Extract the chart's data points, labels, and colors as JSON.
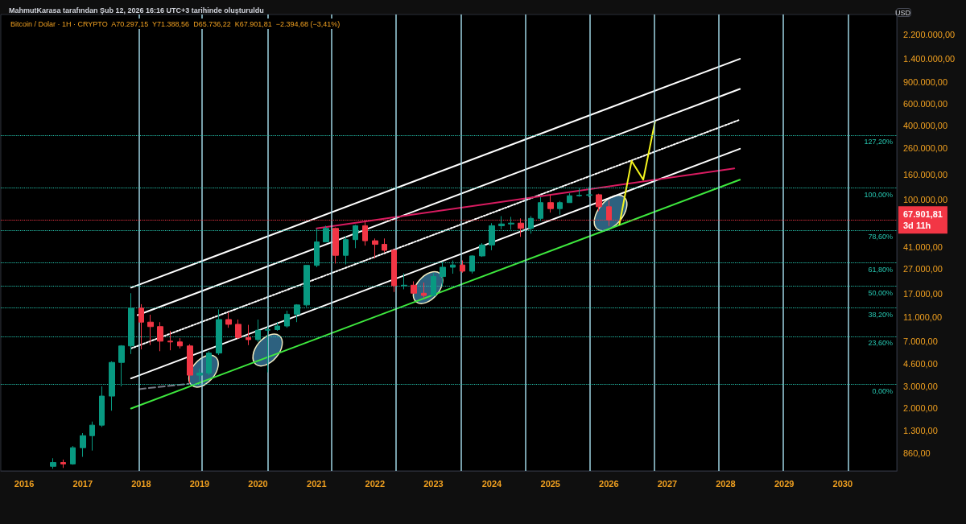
{
  "chart_data": {
    "type": "candlestick",
    "title": "MahmutKarasa tarafından Şub 12, 2026 16:16 UTC+3 tarihinde oluşturuldu",
    "subtitle": "Bitcoin / Dolar · 1H · CRYPTO  A70.297,15  Y71.388,56  D65.736,22  K67.901,81  −2.394,68 (−3,41%)",
    "ylabel": "USD",
    "x": [
      "2016-07-01",
      "2016-09-01",
      "2016-11-01",
      "2017-01-01",
      "2017-03-01",
      "2017-05-01",
      "2017-07-01",
      "2017-09-01",
      "2017-11-01",
      "2018-01-01",
      "2018-03-01",
      "2018-05-01",
      "2018-07-01",
      "2018-09-01",
      "2018-11-01",
      "2019-01-01",
      "2019-03-01",
      "2019-05-01",
      "2019-07-01",
      "2019-09-01",
      "2019-11-01",
      "2020-01-01",
      "2020-03-01",
      "2020-05-01",
      "2020-07-01",
      "2020-09-01",
      "2020-11-01",
      "2021-01-01",
      "2021-03-01",
      "2021-05-01",
      "2021-07-01",
      "2021-09-01",
      "2021-11-01",
      "2022-01-01",
      "2022-03-01",
      "2022-05-01",
      "2022-07-01",
      "2022-09-01",
      "2022-11-01",
      "2023-01-01",
      "2023-03-01",
      "2023-05-01",
      "2023-07-01",
      "2023-09-01",
      "2023-11-01",
      "2024-01-01",
      "2024-03-01",
      "2024-05-01",
      "2024-07-01",
      "2024-09-01",
      "2024-11-01",
      "2025-01-01",
      "2025-03-01",
      "2025-05-01",
      "2025-07-01",
      "2025-09-01",
      "2025-11-01",
      "2026-01-01"
    ],
    "ohlc": [
      [
        670,
        780,
        640,
        720
      ],
      [
        720,
        760,
        650,
        700
      ],
      [
        700,
        980,
        690,
        950
      ],
      [
        950,
        1250,
        800,
        1190
      ],
      [
        1190,
        1550,
        900,
        1450
      ],
      [
        1450,
        3000,
        1400,
        2500
      ],
      [
        2500,
        4800,
        1900,
        4700
      ],
      [
        4700,
        6500,
        3000,
        6400
      ],
      [
        6400,
        17200,
        5500,
        13000
      ],
      [
        13000,
        14000,
        6000,
        10000
      ],
      [
        10000,
        11500,
        6500,
        9200
      ],
      [
        9200,
        10000,
        5800,
        7000
      ],
      [
        7000,
        8500,
        5900,
        6900
      ],
      [
        6900,
        7400,
        6100,
        6400
      ],
      [
        6400,
        6600,
        3200,
        3700
      ],
      [
        3700,
        4200,
        3300,
        3850
      ],
      [
        3850,
        5800,
        3700,
        5600
      ],
      [
        5600,
        12700,
        5400,
        10500
      ],
      [
        10500,
        12000,
        9000,
        9600
      ],
      [
        9600,
        10500,
        7300,
        7500
      ],
      [
        7500,
        9500,
        6500,
        7200
      ],
      [
        7200,
        10500,
        6900,
        8600
      ],
      [
        8600,
        9200,
        3900,
        8700
      ],
      [
        8700,
        10000,
        8500,
        9300
      ],
      [
        9300,
        12400,
        9000,
        11600
      ],
      [
        11600,
        14000,
        10000,
        13800
      ],
      [
        13800,
        29000,
        13300,
        29000
      ],
      [
        29000,
        58000,
        28000,
        45000
      ],
      [
        45000,
        61000,
        45000,
        58000
      ],
      [
        58000,
        59000,
        30000,
        35000
      ],
      [
        35000,
        50000,
        29500,
        47000
      ],
      [
        47000,
        62000,
        40000,
        61000
      ],
      [
        61000,
        66500,
        42000,
        46000
      ],
      [
        46000,
        48000,
        33000,
        43000
      ],
      [
        43000,
        48000,
        37000,
        38500
      ],
      [
        38500,
        39500,
        17600,
        19800
      ],
      [
        19800,
        25000,
        18500,
        20000
      ],
      [
        20000,
        21500,
        17000,
        17200
      ],
      [
        17200,
        21000,
        15700,
        16500
      ],
      [
        16500,
        25000,
        16300,
        23500
      ],
      [
        23500,
        31000,
        19600,
        28000
      ],
      [
        28000,
        31800,
        24800,
        29200
      ],
      [
        29200,
        31800,
        25300,
        26000
      ],
      [
        26000,
        35000,
        24900,
        34600
      ],
      [
        34600,
        44000,
        34000,
        42500
      ],
      [
        42500,
        64000,
        38500,
        61000
      ],
      [
        61000,
        73000,
        57000,
        63000
      ],
      [
        63000,
        72000,
        56500,
        64000
      ],
      [
        64000,
        70000,
        49500,
        58000
      ],
      [
        58000,
        73000,
        52500,
        70000
      ],
      [
        70000,
        104000,
        67000,
        94000
      ],
      [
        94000,
        109000,
        78000,
        84000
      ],
      [
        84000,
        97000,
        75000,
        94000
      ],
      [
        94000,
        112000,
        94000,
        107000
      ],
      [
        107000,
        123000,
        105000,
        108000
      ],
      [
        108000,
        126000,
        104000,
        109000
      ],
      [
        109000,
        111000,
        80000,
        87000
      ],
      [
        87000,
        98000,
        60700,
        67901.81
      ]
    ],
    "colors": [
      "#089981",
      "#f23645",
      "#089981",
      "#089981",
      "#089981",
      "#089981",
      "#089981",
      "#089981",
      "#089981",
      "#f23645",
      "#f23645",
      "#f23645",
      "#f23645",
      "#f23645",
      "#f23645",
      "#089981",
      "#089981",
      "#089981",
      "#f23645",
      "#f23645",
      "#f23645",
      "#089981",
      "#089981",
      "#089981",
      "#089981",
      "#089981",
      "#089981",
      "#089981",
      "#089981",
      "#f23645",
      "#089981",
      "#089981",
      "#f23645",
      "#f23645",
      "#f23645",
      "#f23645",
      "#089981",
      "#f23645",
      "#f23645",
      "#089981",
      "#089981",
      "#089981",
      "#f23645",
      "#089981",
      "#089981",
      "#089981",
      "#089981",
      "#089981",
      "#f23645",
      "#089981",
      "#089981",
      "#f23645",
      "#089981",
      "#089981",
      "#089981",
      "#089981",
      "#f23645",
      "#f23645"
    ],
    "series": [
      {
        "type": "line",
        "x": [
          "2017-10-30",
          "2028-03-30"
        ],
        "values": [
          19100,
          1393000
        ],
        "color": "#ffffff"
      },
      {
        "type": "line",
        "x": [
          "2017-12-10",
          "2028-03-30"
        ],
        "values": [
          11400,
          792000
        ],
        "color": "#ffffff"
      },
      {
        "type": "line",
        "x": [
          "2017-10-30",
          "2028-03-30"
        ],
        "values": [
          6110,
          445000
        ],
        "color": "#ffffff",
        "line_style": "dotted"
      },
      {
        "type": "line",
        "x": [
          "2017-10-30",
          "2028-03-30"
        ],
        "values": [
          3480,
          258000
        ],
        "color": "#ffffff"
      },
      {
        "type": "line",
        "x": [
          "2017-10-30",
          "2028-03-30"
        ],
        "values": [
          1980,
          144500
        ],
        "color": "#3ee83e"
      },
      {
        "type": "line",
        "x": [
          "2021-01-01",
          "2028-02-24"
        ],
        "values": [
          57900,
          178600
        ],
        "color": "#d81b60"
      },
      {
        "type": "line",
        "x": [
          "2026-03-08",
          "2026-05-23",
          "2026-08-04",
          "2026-10-16"
        ],
        "values": [
          62500,
          205000,
          144500,
          425000
        ],
        "color": "#f5f51e"
      },
      {
        "type": "line",
        "x": [
          "2017-12-20",
          "2018-10-26"
        ],
        "values": [
          2850,
          3150
        ],
        "color": "#787b86",
        "line_style": "dashed"
      }
    ],
    "marker": "none",
    "xlim": [
      "2015-08-08",
      "2030-12-05"
    ],
    "xticks": [
      "2016",
      "2017",
      "2018",
      "2019",
      "2020",
      "2021",
      "2022",
      "2023",
      "2024",
      "2025",
      "2026",
      "2027",
      "2028",
      "2029",
      "2030"
    ],
    "ylim": [
      615,
      3200000
    ],
    "yticks": [
      {
        "value": 2200000,
        "label": "2.200.000,00"
      },
      {
        "value": 1400000,
        "label": "1.400.000,00"
      },
      {
        "value": 900000,
        "label": "900.000,00"
      },
      {
        "value": 600000,
        "label": "600.000,00"
      },
      {
        "value": 400000,
        "label": "400.000,00"
      },
      {
        "value": 260000,
        "label": "260.000,00"
      },
      {
        "value": 160000,
        "label": "160.000,00"
      },
      {
        "value": 100000,
        "label": "100.000,00"
      },
      {
        "value": 41000,
        "label": "41.000,00"
      },
      {
        "value": 27000,
        "label": "27.000,00"
      },
      {
        "value": 17000,
        "label": "17.000,00"
      },
      {
        "value": 11000,
        "label": "11.000,00"
      },
      {
        "value": 7000,
        "label": "7.000,00"
      },
      {
        "value": 4600,
        "label": "4.600,00"
      },
      {
        "value": 3000,
        "label": "3.000,00"
      },
      {
        "value": 2000,
        "label": "2.000,00"
      },
      {
        "value": 1300,
        "label": "1.300,00"
      },
      {
        "value": 860,
        "label": "860,00"
      }
    ],
    "annotations": [
      {
        "text": "127,20%",
        "x": "2030-12-05",
        "y": 333000
      },
      {
        "text": "100,00%",
        "x": "2030-12-05",
        "y": 124000
      },
      {
        "text": "78,60%",
        "x": "2030-12-05",
        "y": 56200
      },
      {
        "text": "61,80%",
        "x": "2030-12-05",
        "y": 30600
      },
      {
        "text": "50,00%",
        "x": "2030-12-05",
        "y": 19700
      },
      {
        "text": "38,20%",
        "x": "2030-12-05",
        "y": 13100
      },
      {
        "text": "23,60%",
        "x": "2030-12-05",
        "y": 7670
      },
      {
        "text": "0,00%",
        "x": "2030-12-05",
        "y": 3130
      }
    ],
    "log": true,
    "grid": false,
    "ref_lines": [
      {
        "axis": "x",
        "value": "2017-12-17",
        "label": null,
        "color": "#9fd4e3"
      },
      {
        "axis": "x",
        "value": "2019-01-15",
        "label": null,
        "color": "#9fd4e3"
      },
      {
        "axis": "x",
        "value": "2020-03-01",
        "label": null,
        "color": "#9fd4e3"
      },
      {
        "axis": "x",
        "value": "2021-04-05",
        "label": null,
        "color": "#9fd4e3"
      },
      {
        "axis": "x",
        "value": "2022-05-11",
        "label": null,
        "color": "#9fd4e3"
      },
      {
        "axis": "x",
        "value": "2023-06-24",
        "label": null,
        "color": "#9fd4e3"
      },
      {
        "axis": "x",
        "value": "2024-07-30",
        "label": null,
        "color": "#9fd4e3"
      },
      {
        "axis": "x",
        "value": "2025-09-06",
        "label": null,
        "color": "#9fd4e3"
      },
      {
        "axis": "x",
        "value": "2026-10-12",
        "label": null,
        "color": "#9fd4e3"
      },
      {
        "axis": "x",
        "value": "2027-11-20",
        "label": null,
        "color": "#9fd4e3"
      },
      {
        "axis": "x",
        "value": "2028-12-27",
        "label": null,
        "color": "#9fd4e3"
      },
      {
        "axis": "x",
        "value": "2030-02-05",
        "label": null,
        "color": "#9fd4e3"
      },
      {
        "axis": "y",
        "value": 333000,
        "label": null,
        "color": "#26c6b0",
        "line_style": "dotted"
      },
      {
        "axis": "y",
        "value": 124000,
        "label": null,
        "color": "#26c6b0",
        "line_style": "dotted"
      },
      {
        "axis": "y",
        "value": 56200,
        "label": null,
        "color": "#26c6b0",
        "line_style": "dotted"
      },
      {
        "axis": "y",
        "value": 30600,
        "label": null,
        "color": "#26c6b0",
        "line_style": "dotted"
      },
      {
        "axis": "y",
        "value": 19700,
        "label": null,
        "color": "#26c6b0",
        "line_style": "dotted"
      },
      {
        "axis": "y",
        "value": 13100,
        "label": null,
        "color": "#26c6b0",
        "line_style": "dotted"
      },
      {
        "axis": "y",
        "value": 7670,
        "label": null,
        "color": "#26c6b0",
        "line_style": "dotted"
      },
      {
        "axis": "y",
        "value": 3130,
        "label": null,
        "color": "#26c6b0",
        "line_style": "dotted"
      },
      {
        "axis": "y",
        "value": 67901.81,
        "label": "67.901,81\n3d 11h",
        "color": "#f23645",
        "line_style": "dotted"
      }
    ]
  }
}
